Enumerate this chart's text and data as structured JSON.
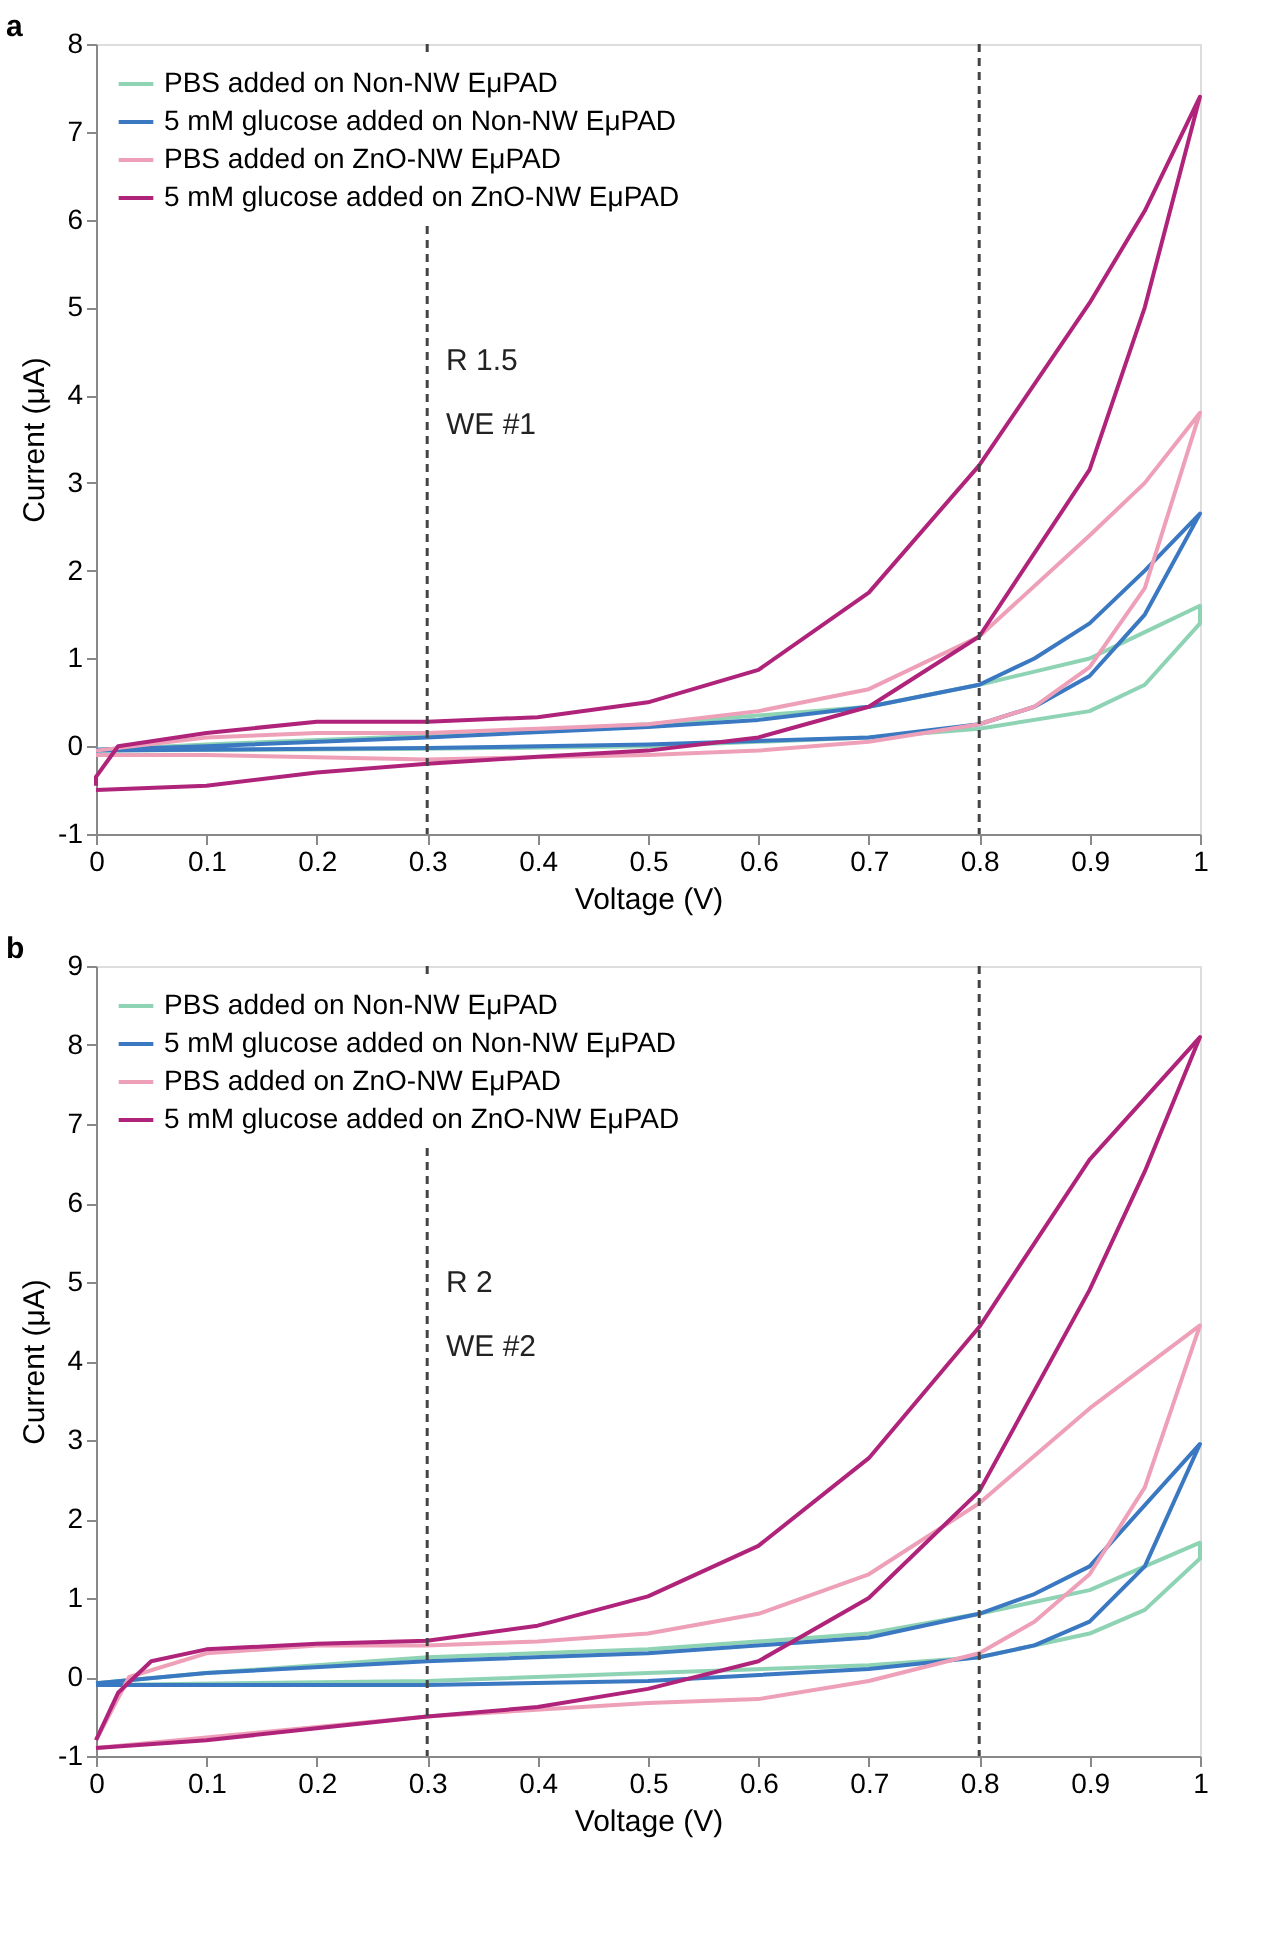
{
  "chart_data": [
    {
      "type": "line",
      "title": "a",
      "xlabel": "Voltage (V)",
      "ylabel": "Current (μA)",
      "xlim": [
        0,
        1
      ],
      "ylim": [
        -1,
        8
      ],
      "xticks": [
        0,
        0.1,
        0.2,
        0.3,
        0.4,
        0.5,
        0.6,
        0.7,
        0.8,
        0.9,
        1
      ],
      "yticks": [
        -1,
        0,
        1,
        2,
        3,
        4,
        5,
        6,
        7,
        8
      ],
      "legend": "top left",
      "grid": false,
      "marker": "none",
      "line_style": "solid",
      "annotations": [
        "R 1.5",
        "WE #1"
      ],
      "ref_lines": [
        {
          "axis": "x",
          "value": 0.3,
          "line_style": "dashed",
          "color": "#444444"
        },
        {
          "axis": "x",
          "value": 0.8,
          "line_style": "dashed",
          "color": "#444444"
        }
      ],
      "series": [
        {
          "name": "PBS added on Non-NW EμPAD",
          "color": "#8fd3b5",
          "x": [
            0,
            0.3,
            0.5,
            0.7,
            0.8,
            0.9,
            0.95,
            1,
            1,
            0.95,
            0.9,
            0.85,
            0.8,
            0.7,
            0.5,
            0.3,
            0.1,
            0
          ],
          "values": [
            -0.05,
            -0.03,
            0,
            0.1,
            0.2,
            0.4,
            0.7,
            1.4,
            1.6,
            1.3,
            1.0,
            0.85,
            0.7,
            0.45,
            0.25,
            0.12,
            0.02,
            -0.04
          ]
        },
        {
          "name": "5 mM glucose added on Non-NW EμPAD",
          "color": "#3a78c2",
          "x": [
            0,
            0.3,
            0.5,
            0.7,
            0.8,
            0.85,
            0.9,
            0.95,
            1,
            0.95,
            0.9,
            0.85,
            0.8,
            0.7,
            0.6,
            0.5,
            0.3,
            0.1,
            0
          ],
          "values": [
            -0.05,
            -0.02,
            0.02,
            0.1,
            0.25,
            0.45,
            0.8,
            1.5,
            2.65,
            2.0,
            1.4,
            1.0,
            0.7,
            0.45,
            0.3,
            0.22,
            0.1,
            0,
            -0.04
          ]
        },
        {
          "name": "PBS added on ZnO-NW EμPAD",
          "color": "#eea0b8",
          "x": [
            0,
            0.1,
            0.3,
            0.5,
            0.6,
            0.7,
            0.8,
            0.85,
            0.9,
            0.95,
            1,
            0.95,
            0.9,
            0.8,
            0.7,
            0.6,
            0.5,
            0.4,
            0.3,
            0.2,
            0.1,
            0
          ],
          "values": [
            -0.1,
            -0.1,
            -0.15,
            -0.1,
            -0.05,
            0.05,
            0.25,
            0.45,
            0.9,
            1.8,
            3.8,
            3.0,
            2.4,
            1.25,
            0.65,
            0.4,
            0.25,
            0.2,
            0.15,
            0.15,
            0.1,
            -0.05
          ]
        },
        {
          "name": "5 mM glucose added on ZnO-NW EμPAD",
          "color": "#b0237a",
          "x": [
            0,
            0.1,
            0.2,
            0.3,
            0.4,
            0.5,
            0.6,
            0.7,
            0.8,
            0.9,
            0.95,
            1,
            0.95,
            0.9,
            0.8,
            0.7,
            0.6,
            0.5,
            0.4,
            0.3,
            0.2,
            0.1,
            0.02,
            0,
            0
          ],
          "values": [
            -0.5,
            -0.45,
            -0.3,
            -0.2,
            -0.12,
            -0.05,
            0.1,
            0.45,
            1.25,
            3.15,
            5.0,
            7.4,
            6.1,
            5.05,
            3.2,
            1.75,
            0.87,
            0.5,
            0.33,
            0.28,
            0.28,
            0.15,
            0,
            -0.35,
            -0.45
          ]
        }
      ]
    },
    {
      "type": "line",
      "title": "b",
      "xlabel": "Voltage (V)",
      "ylabel": "Current (μA)",
      "xlim": [
        0,
        1
      ],
      "ylim": [
        -1,
        9
      ],
      "xticks": [
        0,
        0.1,
        0.2,
        0.3,
        0.4,
        0.5,
        0.6,
        0.7,
        0.8,
        0.9,
        1
      ],
      "yticks": [
        -1,
        0,
        1,
        2,
        3,
        4,
        5,
        6,
        7,
        8,
        9
      ],
      "legend": "top left",
      "grid": false,
      "marker": "none",
      "line_style": "solid",
      "annotations": [
        "R 2",
        "WE #2"
      ],
      "ref_lines": [
        {
          "axis": "x",
          "value": 0.3,
          "line_style": "dashed",
          "color": "#444444"
        },
        {
          "axis": "x",
          "value": 0.8,
          "line_style": "dashed",
          "color": "#444444"
        }
      ],
      "series": [
        {
          "name": "PBS added on Non-NW EμPAD",
          "color": "#8fd3b5",
          "x": [
            0,
            0.3,
            0.5,
            0.7,
            0.8,
            0.9,
            0.95,
            1,
            1,
            0.9,
            0.8,
            0.7,
            0.5,
            0.3,
            0.1,
            0
          ],
          "values": [
            -0.1,
            -0.05,
            0.05,
            0.15,
            0.25,
            0.55,
            0.85,
            1.5,
            1.7,
            1.1,
            0.8,
            0.55,
            0.35,
            0.25,
            0.05,
            -0.08
          ]
        },
        {
          "name": "5 mM glucose added on Non-NW EμPAD",
          "color": "#3a78c2",
          "x": [
            0,
            0.3,
            0.5,
            0.7,
            0.8,
            0.85,
            0.9,
            0.95,
            1,
            0.9,
            0.85,
            0.8,
            0.7,
            0.5,
            0.3,
            0.1,
            0
          ],
          "values": [
            -0.1,
            -0.1,
            -0.05,
            0.1,
            0.25,
            0.4,
            0.7,
            1.4,
            2.95,
            1.4,
            1.05,
            0.8,
            0.5,
            0.3,
            0.2,
            0.05,
            -0.08
          ]
        },
        {
          "name": "PBS added on ZnO-NW EμPAD",
          "color": "#eea0b8",
          "x": [
            0,
            0.3,
            0.5,
            0.6,
            0.7,
            0.8,
            0.85,
            0.9,
            0.95,
            1,
            0.9,
            0.8,
            0.7,
            0.6,
            0.5,
            0.4,
            0.3,
            0.2,
            0.1,
            0.03,
            0
          ],
          "values": [
            -0.9,
            -0.5,
            -0.33,
            -0.28,
            -0.05,
            0.3,
            0.7,
            1.3,
            2.4,
            4.45,
            3.4,
            2.2,
            1.3,
            0.8,
            0.55,
            0.45,
            0.4,
            0.4,
            0.3,
            0,
            -0.8
          ]
        },
        {
          "name": "5 mM glucose added on ZnO-NW EμPAD",
          "color": "#b0237a",
          "x": [
            0,
            0.1,
            0.2,
            0.3,
            0.4,
            0.5,
            0.6,
            0.7,
            0.8,
            0.9,
            0.95,
            1,
            0.9,
            0.8,
            0.7,
            0.6,
            0.5,
            0.4,
            0.3,
            0.2,
            0.1,
            0.05,
            0.02,
            0
          ],
          "values": [
            -0.9,
            -0.8,
            -0.65,
            -0.5,
            -0.38,
            -0.15,
            0.2,
            1.0,
            2.35,
            4.9,
            6.4,
            8.1,
            6.55,
            4.43,
            2.77,
            1.66,
            1.02,
            0.65,
            0.46,
            0.42,
            0.35,
            0.2,
            -0.2,
            -0.8
          ]
        }
      ]
    }
  ]
}
